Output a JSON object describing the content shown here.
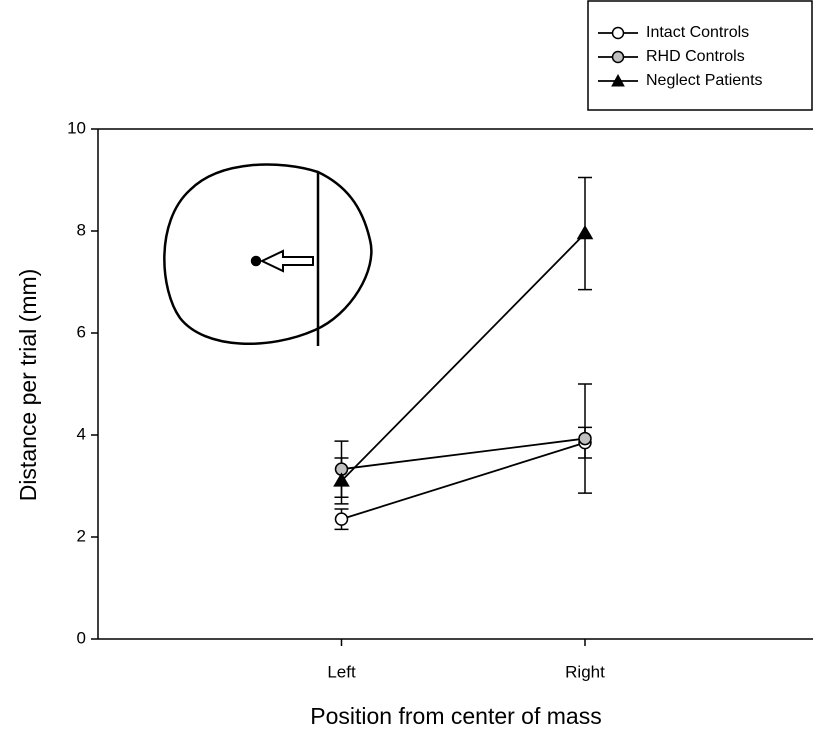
{
  "chart_data": {
    "type": "line",
    "x_label": "Position from center of mass",
    "y_label": "Distance per trial (mm)",
    "categories": [
      "Left",
      "Right"
    ],
    "series": [
      {
        "name": "Intact Controls",
        "color": "#ffffff",
        "marker": "circle",
        "values": [
          2.35,
          3.85
        ],
        "errors": [
          0.2,
          0.3
        ]
      },
      {
        "name": "RHD Controls",
        "color": "#c0c0c0",
        "marker": "circle",
        "values": [
          3.33,
          3.93
        ],
        "errors": [
          0.55,
          1.07
        ]
      },
      {
        "name": "Neglect Patients",
        "color": "#000000",
        "marker": "triangle",
        "values": [
          3.1,
          7.95
        ],
        "errors": [
          0.45,
          1.1
        ]
      }
    ],
    "ylim": [
      0,
      10
    ],
    "yticks": [
      0,
      2,
      4,
      6,
      8,
      10
    ],
    "legend": "top-right"
  }
}
